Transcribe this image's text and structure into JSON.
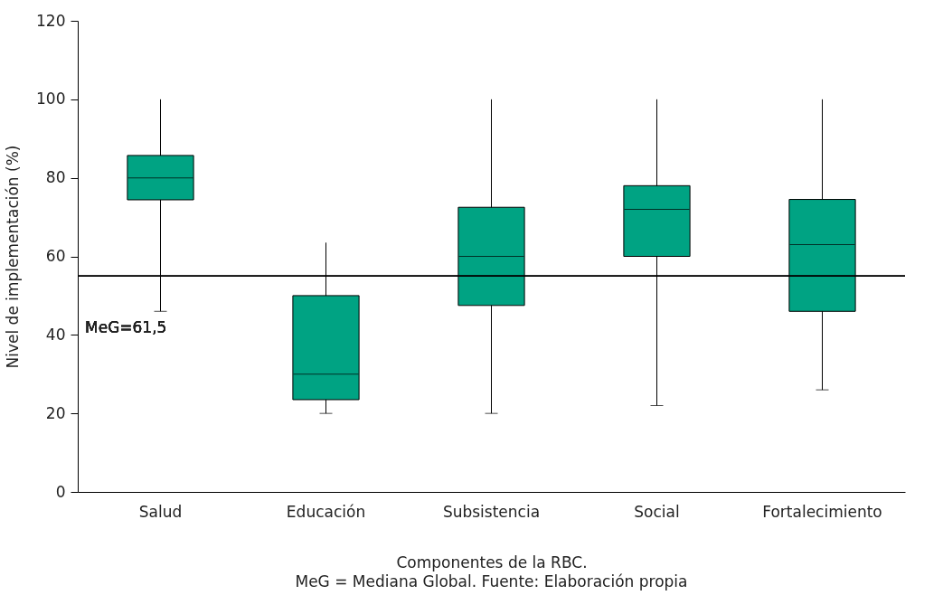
{
  "chart_data": {
    "type": "box",
    "xlabel": "Componentes de la RBC.",
    "ylabel": "Nivel de implementación (%)",
    "categories": [
      "Salud",
      "Educación",
      "Subsistencia",
      "Social",
      "Fortalecimiento"
    ],
    "series": [
      {
        "color": "#00a383",
        "boxes": [
          {
            "low": 46,
            "q1": 74.4,
            "median": 80,
            "q3": 85.7,
            "high": 100
          },
          {
            "low": 20,
            "q1": 23.5,
            "median": 30,
            "q3": 50,
            "high": 63.5
          },
          {
            "low": 20,
            "q1": 47.5,
            "median": 60,
            "q3": 72.5,
            "high": 100
          },
          {
            "low": 22,
            "q1": 60,
            "median": 72,
            "q3": 78,
            "high": 100
          },
          {
            "low": 26,
            "q1": 46,
            "median": 63,
            "q3": 74.5,
            "high": 100
          }
        ]
      }
    ],
    "ylim": [
      0,
      120
    ],
    "yticks": [
      0,
      20,
      40,
      60,
      80,
      100,
      120
    ],
    "grid": false,
    "ref_lines": [
      {
        "axis": "y",
        "value": 55,
        "color": "#000000"
      }
    ],
    "annotations": [
      "MeG=61,5",
      "MeG = Mediana Global. Fuente: Elaboración propia"
    ]
  }
}
